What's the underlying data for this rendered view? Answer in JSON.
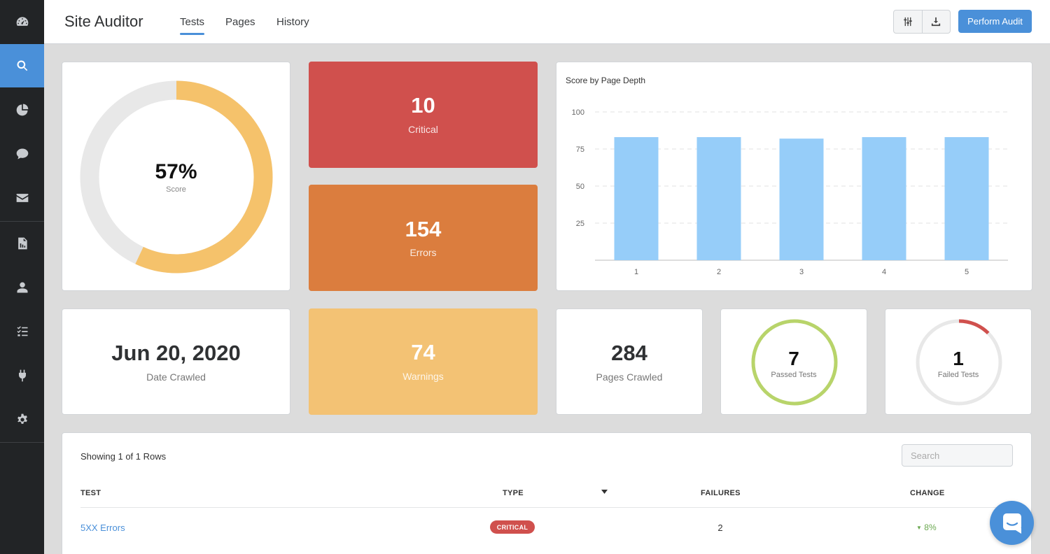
{
  "app": {
    "title": "Site Auditor"
  },
  "tabs": [
    {
      "label": "Tests",
      "active": true
    },
    {
      "label": "Pages",
      "active": false
    },
    {
      "label": "History",
      "active": false
    }
  ],
  "toolbar": {
    "filter_icon": "sliders-icon",
    "download_icon": "download-icon",
    "perform_label": "Perform Audit"
  },
  "sidebar": {
    "items": [
      {
        "name": "dashboard",
        "icon": "gauge-icon",
        "active": false
      },
      {
        "name": "search",
        "icon": "search-icon",
        "active": true
      },
      {
        "name": "reports",
        "icon": "pie-chart-icon",
        "active": false
      },
      {
        "name": "comments",
        "icon": "chat-icon",
        "active": false
      },
      {
        "name": "mail",
        "icon": "envelope-icon",
        "active": false
      },
      {
        "name": "documents",
        "icon": "file-chart-icon",
        "active": false
      },
      {
        "name": "users",
        "icon": "user-icon",
        "active": false
      },
      {
        "name": "tasks",
        "icon": "checklist-icon",
        "active": false
      },
      {
        "name": "integrations",
        "icon": "plug-icon",
        "active": false
      },
      {
        "name": "settings",
        "icon": "gear-icon",
        "active": false
      }
    ]
  },
  "score": {
    "value": "57%",
    "label": "Score",
    "fraction": 0.57,
    "color": "#f5c26b",
    "track": "#e8e8e8"
  },
  "critical": {
    "value": "10",
    "label": "Critical",
    "color": "#d0504d"
  },
  "errors": {
    "value": "154",
    "label": "Errors",
    "color": "#db7d3e"
  },
  "warnings": {
    "value": "74",
    "label": "Warnings",
    "color": "#f3c274"
  },
  "date_crawled": {
    "value": "Jun 20, 2020",
    "label": "Date Crawled"
  },
  "pages_crawled": {
    "value": "284",
    "label": "Pages Crawled"
  },
  "passed_tests": {
    "value": "7",
    "label": "Passed Tests",
    "fraction": 1.0,
    "color": "#b8d46a"
  },
  "failed_tests": {
    "value": "1",
    "label": "Failed Tests",
    "fraction": 0.125,
    "color": "#d0504d"
  },
  "chart_data": {
    "type": "bar",
    "title": "Score by Page Depth",
    "categories": [
      "1",
      "2",
      "3",
      "4",
      "5"
    ],
    "values": [
      83,
      83,
      82,
      83,
      83
    ],
    "yticks": [
      25,
      50,
      75,
      100
    ],
    "ylim": [
      0,
      100
    ],
    "grid": true,
    "bar_color": "#96cdf9"
  },
  "table": {
    "info": "Showing 1 of 1 Rows",
    "search_placeholder": "Search",
    "headers": {
      "test": "TEST",
      "type": "TYPE",
      "failures": "FAILURES",
      "change": "CHANGE"
    },
    "rows": [
      {
        "test": "5XX Errors",
        "type": "CRITICAL",
        "failures": "2",
        "change": "8%"
      }
    ]
  }
}
